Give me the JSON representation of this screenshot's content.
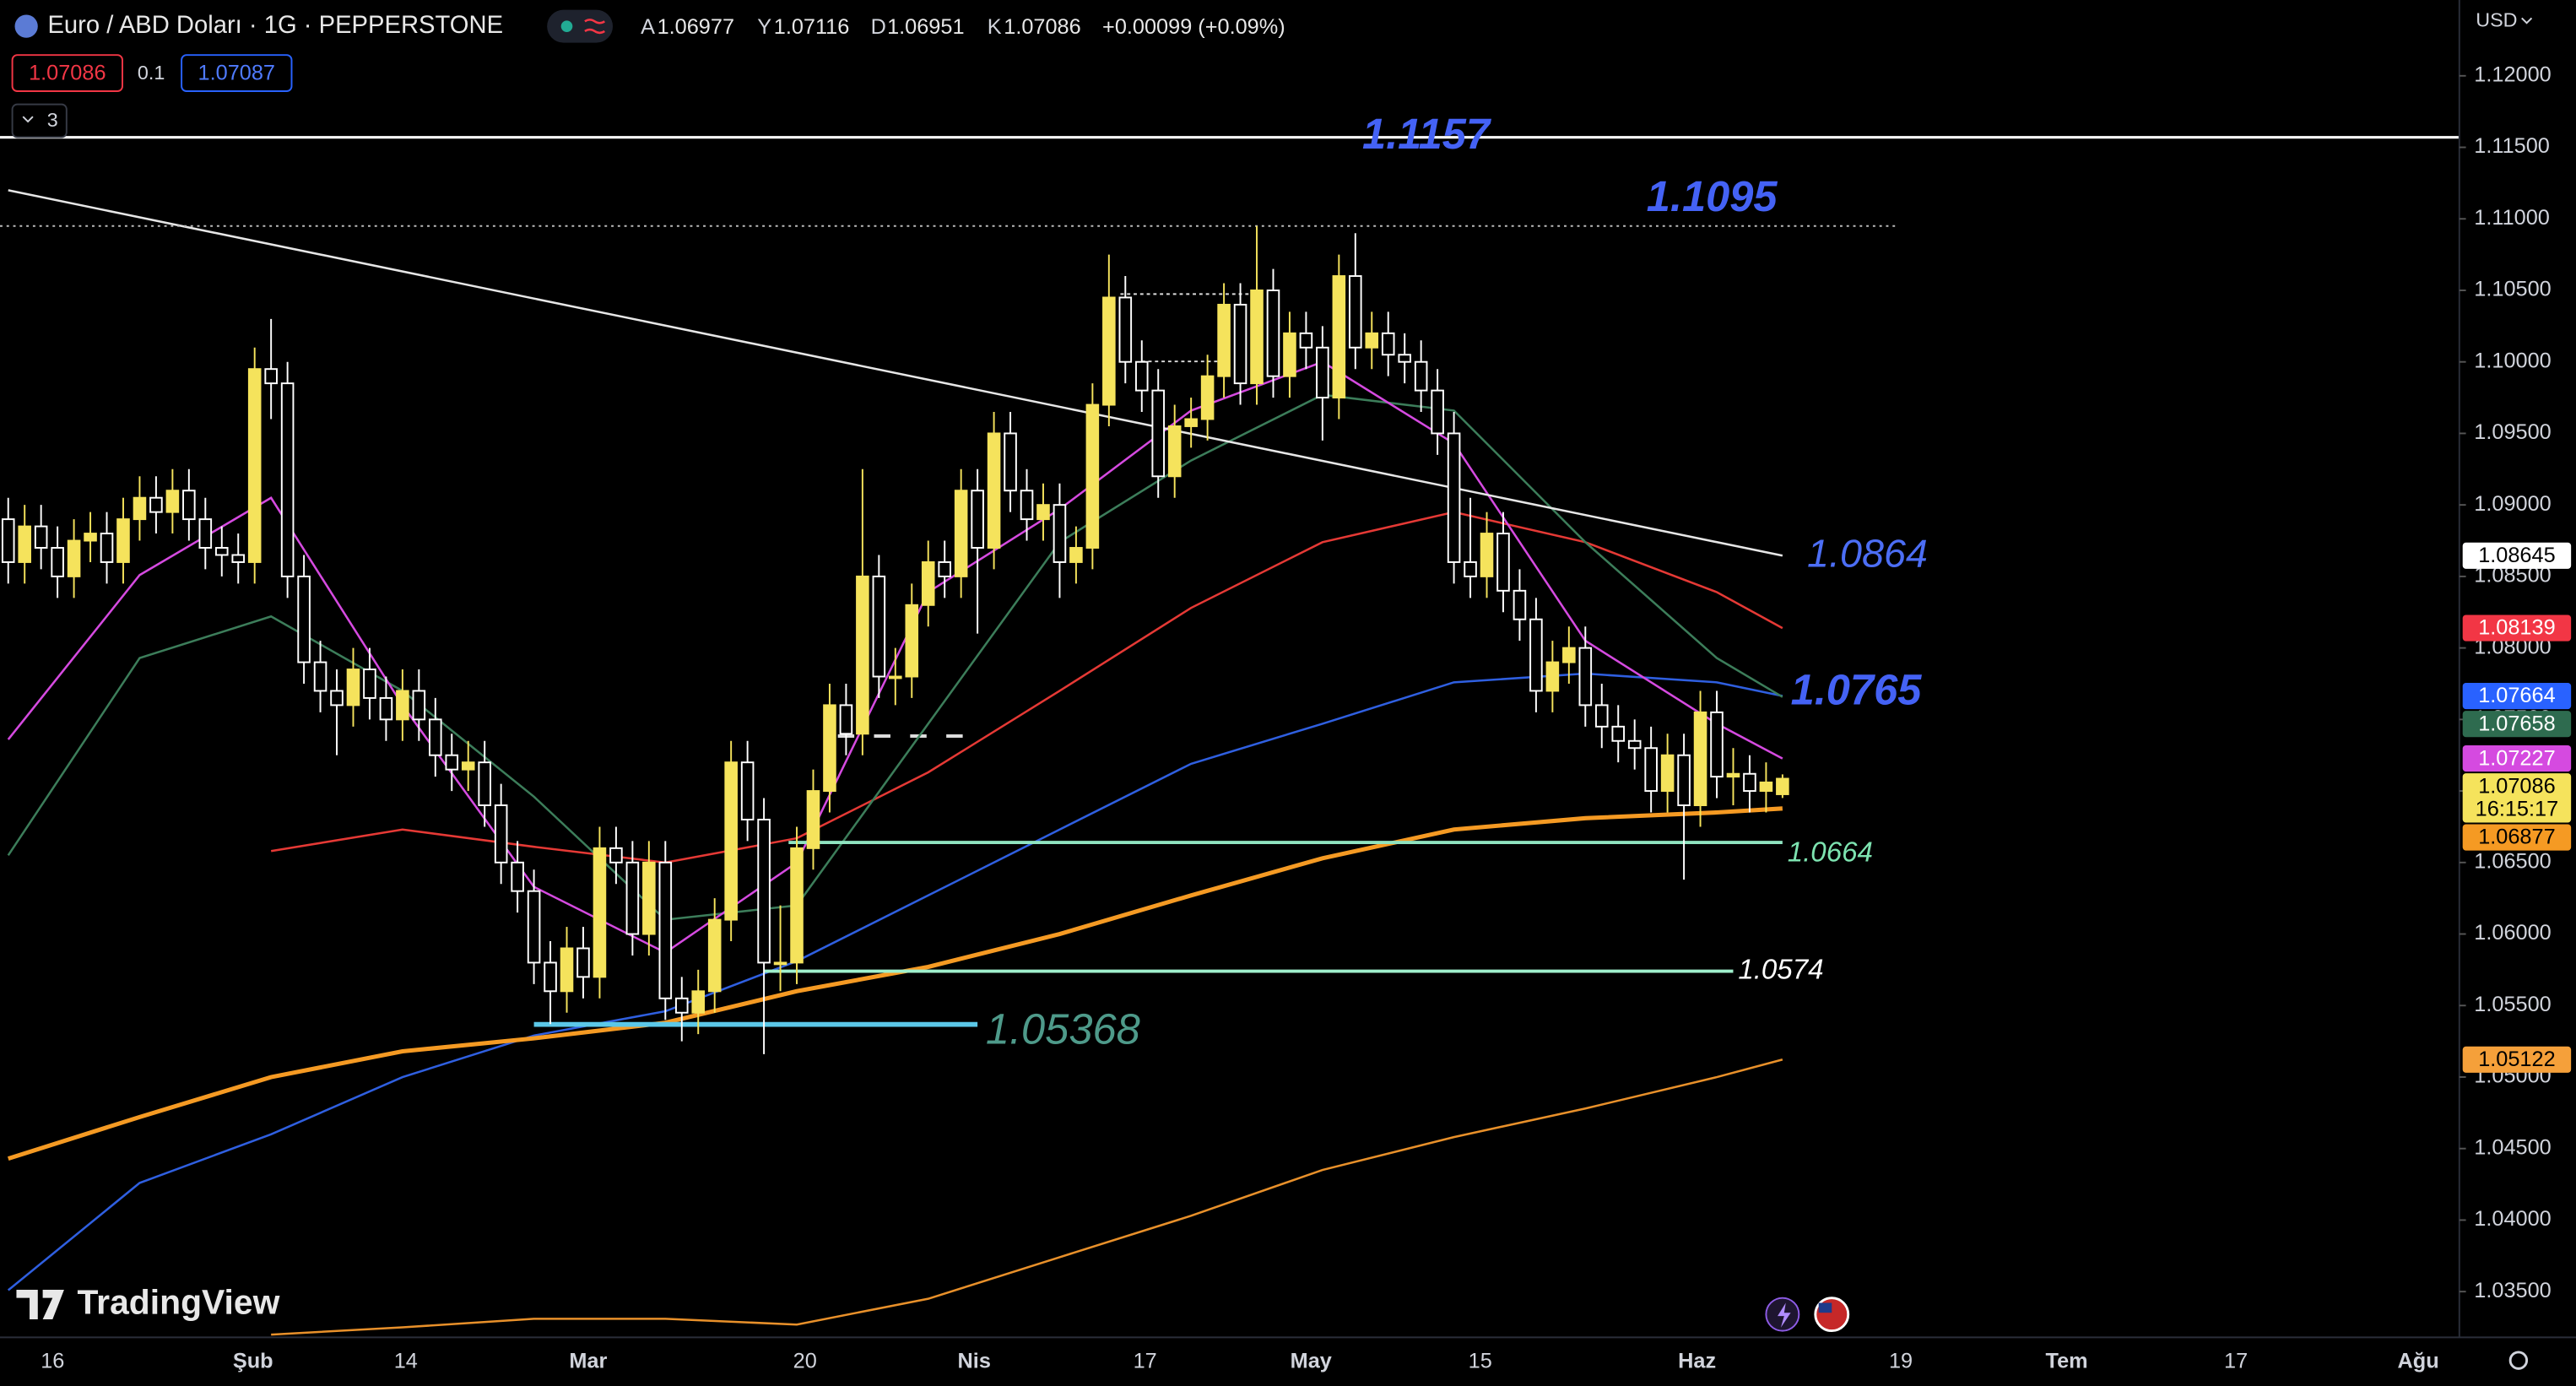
{
  "header": {
    "title": "Euro / ABD Doları · 1G · PEPPERSTONE",
    "ohlc_labels": [
      "A",
      "Y",
      "D",
      "K"
    ],
    "change_text": "+0.00099 (+0.09%)"
  },
  "toolbar": {
    "sell": "1.07086",
    "spread": "0.1",
    "buy": "1.07087",
    "collapse_count": 3,
    "currency": "USD",
    "watermark": "TradingView"
  },
  "chart_data": {
    "type": "candlestick",
    "up_color": "#f5e35c",
    "down_color": "#ffffff",
    "open": [
      1.089,
      1.086,
      1.0885,
      1.087,
      1.085,
      1.0875,
      1.088,
      1.086,
      1.089,
      1.0905,
      1.0895,
      1.091,
      1.089,
      1.087,
      1.0865,
      1.086,
      1.0995,
      1.0985,
      1.085,
      1.079,
      1.077,
      1.076,
      1.0785,
      1.0765,
      1.075,
      1.077,
      1.075,
      1.0725,
      1.0715,
      1.072,
      1.069,
      1.065,
      1.063,
      1.058,
      1.056,
      1.059,
      1.057,
      1.066,
      1.065,
      1.06,
      1.065,
      1.0555,
      1.0545,
      1.056,
      1.061,
      1.072,
      1.068,
      1.058,
      1.058,
      1.066,
      1.07,
      1.076,
      1.074,
      1.085,
      1.078,
      1.078,
      1.083,
      1.086,
      1.085,
      1.091,
      1.087,
      1.095,
      1.091,
      1.089,
      1.09,
      1.086,
      1.087,
      1.097,
      1.1045,
      1.1,
      1.098,
      1.092,
      1.0955,
      1.096,
      1.099,
      1.104,
      1.0985,
      1.105,
      1.099,
      1.102,
      1.101,
      1.0975,
      1.106,
      1.101,
      1.102,
      1.1005,
      1.1,
      1.098,
      1.095,
      1.086,
      1.085,
      1.088,
      1.084,
      1.082,
      1.077,
      1.079,
      1.08,
      1.076,
      1.0745,
      1.0735,
      1.073,
      1.07,
      1.0725,
      1.069,
      1.0755,
      1.071,
      1.0712,
      1.07,
      1.06977
    ],
    "high": [
      1.0905,
      1.09,
      1.09,
      1.0885,
      1.089,
      1.0895,
      1.0895,
      1.0905,
      1.092,
      1.092,
      1.0925,
      1.0925,
      1.0905,
      1.0885,
      1.088,
      1.101,
      1.103,
      1.1,
      1.0865,
      1.0805,
      1.0785,
      1.08,
      1.08,
      1.078,
      1.0785,
      1.0785,
      1.0765,
      1.074,
      1.0735,
      1.0735,
      1.0705,
      1.0665,
      1.0645,
      1.0595,
      1.0605,
      1.0605,
      1.0675,
      1.0675,
      1.0665,
      1.0665,
      1.0665,
      1.057,
      1.0575,
      1.0625,
      1.0735,
      1.0735,
      1.0695,
      1.062,
      1.0675,
      1.0715,
      1.0775,
      1.0775,
      1.0925,
      1.0865,
      1.08,
      1.0845,
      1.0875,
      1.0875,
      1.0925,
      1.0925,
      1.0965,
      1.0965,
      1.0925,
      1.0915,
      1.0915,
      1.0885,
      1.0985,
      1.1075,
      1.106,
      1.1015,
      1.0995,
      1.097,
      1.0975,
      1.1005,
      1.1055,
      1.1055,
      1.1095,
      1.1065,
      1.1035,
      1.1035,
      1.1025,
      1.1075,
      1.109,
      1.1035,
      1.1035,
      1.102,
      1.1015,
      1.0995,
      1.0965,
      1.0905,
      1.0895,
      1.0895,
      1.0855,
      1.0835,
      1.0805,
      1.0815,
      1.0815,
      1.0775,
      1.076,
      1.075,
      1.0745,
      1.074,
      1.074,
      1.077,
      1.077,
      1.073,
      1.0725,
      1.072,
      1.07116
    ],
    "low": [
      1.0845,
      1.0845,
      1.0855,
      1.0835,
      1.0835,
      1.086,
      1.0845,
      1.0845,
      1.0875,
      1.088,
      1.088,
      1.0875,
      1.0855,
      1.085,
      1.0845,
      1.0845,
      1.096,
      1.0835,
      1.0775,
      1.0755,
      1.0725,
      1.0745,
      1.075,
      1.0735,
      1.0735,
      1.0735,
      1.071,
      1.07,
      1.07,
      1.0675,
      1.0635,
      1.0615,
      1.0565,
      1.0537,
      1.0545,
      1.0555,
      1.0555,
      1.0635,
      1.0585,
      1.0585,
      1.054,
      1.0525,
      1.053,
      1.0545,
      1.0595,
      1.0665,
      1.0516,
      1.056,
      1.0565,
      1.0645,
      1.0685,
      1.0725,
      1.0725,
      1.0765,
      1.076,
      1.0765,
      1.0815,
      1.0835,
      1.0835,
      1.081,
      1.0855,
      1.0895,
      1.0875,
      1.0875,
      1.0835,
      1.0845,
      1.0855,
      1.0955,
      1.0985,
      1.0965,
      1.0905,
      1.0905,
      1.094,
      1.0945,
      1.0975,
      1.097,
      1.097,
      1.0975,
      1.0975,
      1.0995,
      1.0945,
      1.096,
      1.0995,
      1.0995,
      1.099,
      1.0985,
      1.0965,
      1.0935,
      1.0845,
      1.0835,
      1.0835,
      1.0825,
      1.0805,
      1.0755,
      1.0755,
      1.0775,
      1.0745,
      1.073,
      1.072,
      1.0715,
      1.0685,
      1.0685,
      1.0638,
      1.0675,
      1.0695,
      1.069,
      1.0685,
      1.0685,
      1.06951
    ],
    "close": [
      1.086,
      1.0885,
      1.087,
      1.085,
      1.0875,
      1.088,
      1.086,
      1.089,
      1.0905,
      1.0895,
      1.091,
      1.089,
      1.087,
      1.0865,
      1.086,
      1.0995,
      1.0985,
      1.085,
      1.079,
      1.077,
      1.076,
      1.0785,
      1.0765,
      1.075,
      1.077,
      1.075,
      1.0725,
      1.0715,
      1.072,
      1.069,
      1.065,
      1.063,
      1.058,
      1.056,
      1.059,
      1.057,
      1.066,
      1.065,
      1.06,
      1.065,
      1.0555,
      1.0545,
      1.056,
      1.061,
      1.072,
      1.068,
      1.058,
      1.058,
      1.066,
      1.07,
      1.076,
      1.074,
      1.085,
      1.078,
      1.078,
      1.083,
      1.086,
      1.085,
      1.091,
      1.087,
      1.095,
      1.091,
      1.089,
      1.09,
      1.086,
      1.087,
      1.097,
      1.1045,
      1.1,
      1.098,
      1.092,
      1.0955,
      1.096,
      1.099,
      1.104,
      1.0985,
      1.105,
      1.099,
      1.102,
      1.101,
      1.0975,
      1.106,
      1.101,
      1.102,
      1.1005,
      1.1,
      1.098,
      1.095,
      1.086,
      1.085,
      1.088,
      1.084,
      1.082,
      1.077,
      1.079,
      1.08,
      1.076,
      1.0745,
      1.0735,
      1.073,
      1.07,
      1.0725,
      1.069,
      1.0755,
      1.071,
      1.0712,
      1.07,
      1.0706,
      1.07086
    ],
    "indicators": [
      {
        "color": "#e8902a",
        "width": 1.3,
        "x": [
          0,
          8,
          16,
          24,
          32,
          40,
          48,
          56,
          64,
          72,
          80,
          88,
          96,
          104,
          108
        ],
        "values": [
          null,
          null,
          1.032,
          1.0325,
          1.0331,
          1.0331,
          1.0327,
          1.0345,
          1.0374,
          1.0403,
          1.0435,
          1.0458,
          1.0478,
          1.05,
          1.05122
        ]
      },
      {
        "color": "#2f5fe0",
        "width": 1.3,
        "x": [
          0,
          8,
          16,
          24,
          32,
          40,
          48,
          56,
          64,
          72,
          80,
          88,
          96,
          104,
          108
        ],
        "values": [
          1.0351,
          1.0426,
          1.046,
          1.05,
          1.0529,
          1.0546,
          1.0581,
          1.0627,
          1.0673,
          1.0719,
          1.0747,
          1.0776,
          1.0782,
          1.0776,
          1.07664
        ]
      },
      {
        "color": "#f59a23",
        "width": 2.6,
        "x": [
          0,
          8,
          16,
          24,
          32,
          40,
          48,
          56,
          64,
          72,
          80,
          88,
          96,
          104,
          108
        ],
        "values": [
          1.0443,
          1.0472,
          1.05,
          1.0518,
          1.0527,
          1.0538,
          1.056,
          1.0577,
          1.06,
          1.0627,
          1.0653,
          1.0673,
          1.0681,
          1.0685,
          1.06877
        ]
      },
      {
        "color": "#e53935",
        "width": 1.3,
        "x": [
          0,
          8,
          16,
          24,
          32,
          40,
          48,
          56,
          64,
          72,
          80,
          88,
          96,
          104,
          108
        ],
        "values": [
          null,
          null,
          1.0658,
          1.0673,
          1.0661,
          1.065,
          1.0667,
          1.0713,
          1.077,
          1.0828,
          1.0874,
          1.0895,
          1.0874,
          1.0839,
          1.08139
        ]
      },
      {
        "color": "#3c7d5a",
        "width": 1.3,
        "x": [
          0,
          8,
          16,
          24,
          32,
          40,
          48,
          56,
          64,
          72,
          80,
          88,
          96,
          104,
          108
        ],
        "values": [
          1.0655,
          1.0793,
          1.0822,
          1.077,
          1.0696,
          1.061,
          1.062,
          1.0747,
          1.0874,
          1.0931,
          1.0977,
          1.0966,
          1.0874,
          1.0793,
          1.07658
        ]
      },
      {
        "color": "#d54ae0",
        "width": 1.3,
        "x": [
          0,
          8,
          16,
          24,
          32,
          40,
          48,
          56,
          64,
          72,
          80,
          88,
          96,
          104,
          108
        ],
        "values": [
          1.0736,
          1.0851,
          1.0905,
          1.076,
          1.0633,
          1.0587,
          1.065,
          1.0839,
          1.0897,
          1.0966,
          1.1,
          1.0943,
          1.0805,
          1.0747,
          1.07227
        ]
      }
    ],
    "trendline": {
      "color": "#e6e6e6",
      "x": [
        0,
        108
      ],
      "values": [
        1.112,
        1.08645
      ]
    },
    "levels": [
      {
        "value": 1.1157,
        "label_color": "#4462f5",
        "line_color": "#ffffff"
      },
      {
        "value": 1.1095,
        "label_color": "#4462f5",
        "line_color": "#bbbbbb"
      },
      {
        "value": 1.0864,
        "label_color": "#4c6ef5",
        "line_color": null
      },
      {
        "value": 1.0765,
        "label_color": "#4462f5",
        "line_color": null
      },
      {
        "value": 1.0664,
        "label_color": "#7de3b0",
        "line_color": "#8fe3c0"
      },
      {
        "value": 1.0574,
        "label_color": "#ffffff",
        "line_color": "#9ff0cc"
      },
      {
        "value": 1.05368,
        "label_color": "#4e9a8a",
        "line_color": "#5bc8e8"
      }
    ],
    "price_badges": [
      {
        "value": 1.08645,
        "color": "#ffffff",
        "text_color": "#000000"
      },
      {
        "value": 1.08139,
        "color": "#f23645",
        "text_color": "#ffffff"
      },
      {
        "value": 1.07664,
        "color": "#2962ff",
        "text_color": "#ffffff"
      },
      {
        "value": 1.07658,
        "color": "#2e6b4f",
        "text_color": "#ffffff"
      },
      {
        "value": 1.07227,
        "color": "#d54ae0",
        "text_color": "#ffffff"
      },
      {
        "value": 1.07086,
        "color": "#f5e35c",
        "text_color": "#000000",
        "countdown": "16:15:17"
      },
      {
        "value": 1.06877,
        "color": "#f59a23",
        "text_color": "#000000"
      },
      {
        "value": 1.05122,
        "color": "#f5a03a",
        "text_color": "#000000"
      }
    ],
    "ylim": [
      1.0318,
      1.1253
    ],
    "yticks": [
      {
        "value": 1.12,
        "label": "1.12000"
      },
      {
        "value": 1.115,
        "label": "1.11500"
      },
      {
        "value": 1.11,
        "label": "1.11000"
      },
      {
        "value": 1.105,
        "label": "1.10500"
      },
      {
        "value": 1.1,
        "label": "1.10000"
      },
      {
        "value": 1.095,
        "label": "1.09500"
      },
      {
        "value": 1.09,
        "label": "1.09000"
      },
      {
        "value": 1.085,
        "label": "1.08500"
      },
      {
        "value": 1.08,
        "label": "1.08000"
      },
      {
        "value": 1.075,
        "label": "1.07500"
      },
      {
        "value": 1.07,
        "label": "1.07000"
      },
      {
        "value": 1.065,
        "label": "1.06500"
      },
      {
        "value": 1.06,
        "label": "1.06000"
      },
      {
        "value": 1.055,
        "label": "1.05500"
      },
      {
        "value": 1.05,
        "label": "1.05000"
      },
      {
        "value": 1.045,
        "label": "1.04500"
      },
      {
        "value": 1.04,
        "label": "1.04000"
      },
      {
        "value": 1.035,
        "label": "1.03500"
      }
    ],
    "x_axis_labels": [
      "16",
      "Şub",
      "14",
      "Mar",
      "20",
      "Nis",
      "17",
      "May",
      "15",
      "Haz",
      "19",
      "Tem",
      "17",
      "Ağu"
    ]
  }
}
